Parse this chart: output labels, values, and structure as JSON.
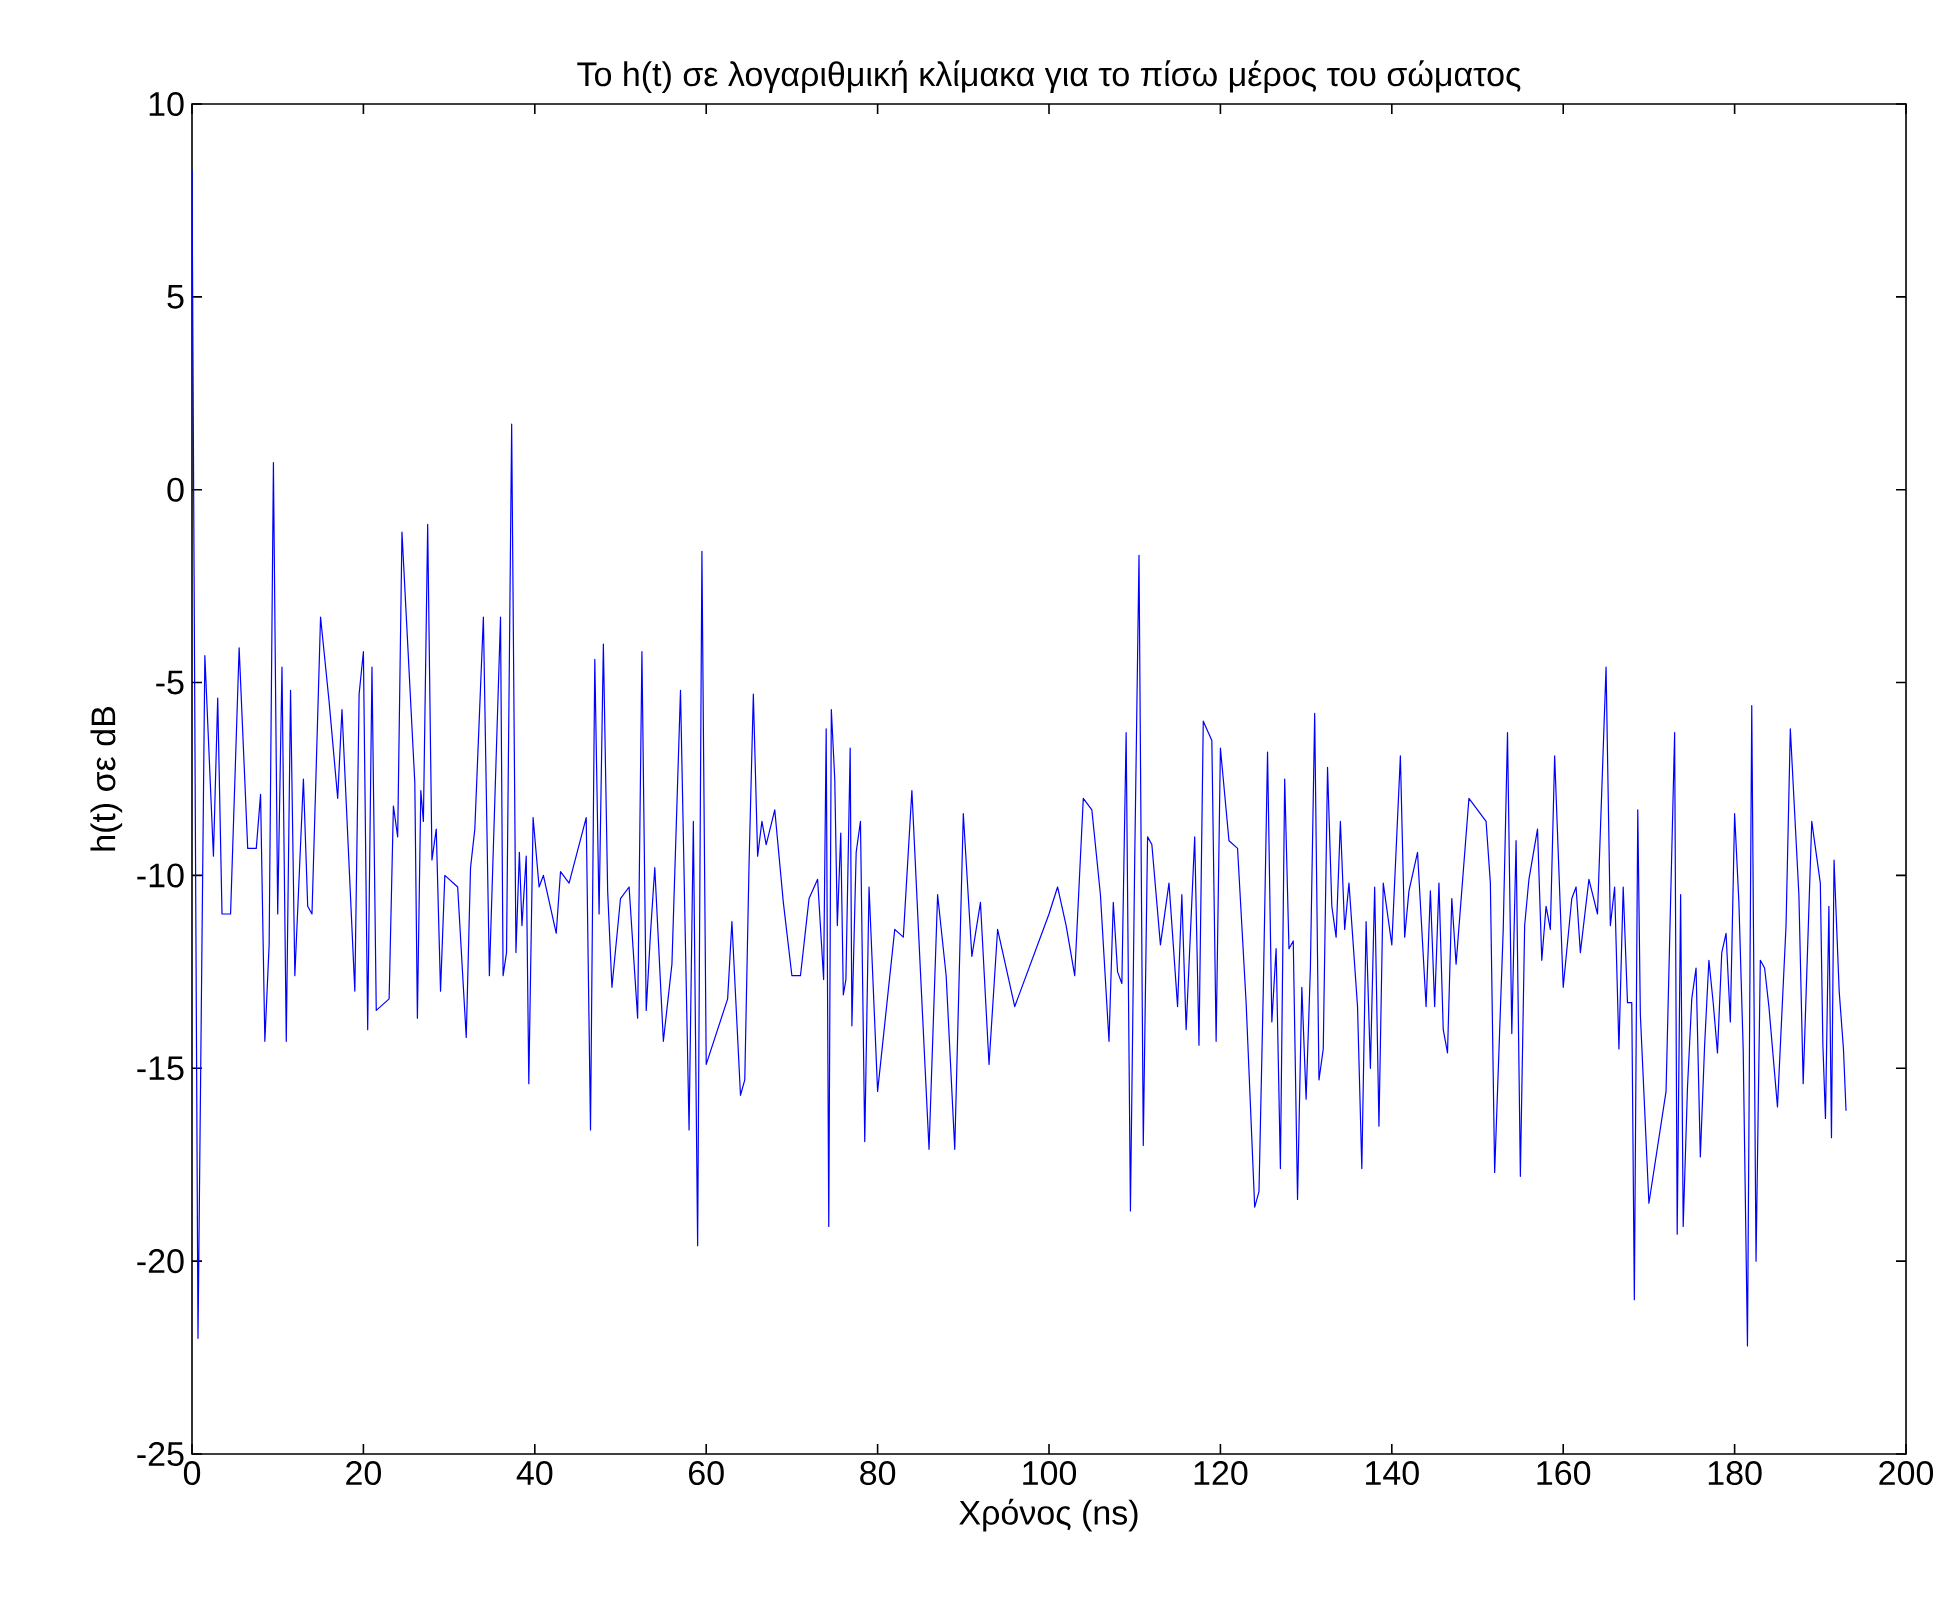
{
  "chart_data": {
    "type": "line",
    "title": "Το h(t) σε λογαριθμική κλίμακα για το πίσω μέρος του σώματος",
    "xlabel": "Χρόνος (ns)",
    "ylabel": "h(t) σε dB",
    "xlim": [
      0,
      200
    ],
    "ylim": [
      -25,
      10
    ],
    "xticks": [
      0,
      20,
      40,
      60,
      80,
      100,
      120,
      140,
      160,
      180,
      200
    ],
    "yticks": [
      -25,
      -20,
      -15,
      -10,
      -5,
      0,
      5,
      10
    ],
    "marker": "none",
    "line_style": "solid",
    "series": [
      {
        "color": "#0000ff",
        "x": [
          0,
          0.7,
          1.5,
          2.5,
          3,
          3.5,
          4.5,
          5.5,
          6.5,
          7.5,
          8,
          8.5,
          9,
          9.5,
          10,
          10.5,
          11,
          11.5,
          12,
          13,
          13.5,
          14,
          15,
          16,
          17,
          17.5,
          19,
          19.5,
          20,
          20.5,
          21,
          21.5,
          23,
          23.5,
          24,
          24.5,
          26,
          26.3,
          26.7,
          27,
          27.5,
          28,
          28.5,
          29,
          29.5,
          31,
          32,
          32.5,
          33,
          34,
          34.7,
          36,
          36.3,
          36.7,
          37.3,
          37.8,
          38.2,
          38.5,
          39,
          39.3,
          39.8,
          40.5,
          41,
          42.5,
          43,
          44,
          46,
          46.5,
          47,
          47.5,
          48,
          48.5,
          49,
          50,
          51,
          52,
          52.5,
          53,
          53.5,
          54,
          55,
          56,
          57,
          58,
          58.5,
          59,
          59.5,
          60,
          62.5,
          63,
          64,
          64.5,
          65,
          65.5,
          66,
          66.5,
          67,
          68,
          69,
          70,
          71,
          72,
          73,
          73.7,
          74,
          74.3,
          74.6,
          75,
          75.3,
          75.7,
          76,
          76.3,
          76.8,
          77,
          77.5,
          78,
          78.5,
          79,
          80,
          82,
          83,
          84,
          85,
          86,
          87,
          88,
          89,
          90,
          91,
          92,
          93,
          94,
          95,
          96,
          98,
          100,
          101,
          102,
          103,
          104,
          105,
          106,
          107,
          107.5,
          108,
          108.5,
          109,
          109.5,
          110,
          110.5,
          111,
          111.5,
          112,
          113,
          114,
          115,
          115.5,
          116,
          117,
          117.5,
          118,
          119,
          119.5,
          120,
          121,
          122,
          123,
          124,
          124.5,
          125,
          125.5,
          126,
          126.5,
          127,
          127.5,
          128,
          128.5,
          129,
          129.5,
          130,
          130.5,
          131,
          131.5,
          132,
          132.5,
          133,
          133.5,
          134,
          134.5,
          135,
          136,
          136.5,
          137,
          137.5,
          138,
          138.5,
          139,
          139.5,
          140,
          141,
          141.5,
          142,
          143,
          144,
          144.5,
          145,
          145.5,
          146,
          146.5,
          147,
          147.5,
          149,
          151,
          151.5,
          152,
          153,
          153.5,
          154,
          154.5,
          155,
          155.5,
          156,
          157,
          157.5,
          158,
          158.5,
          159,
          160,
          161,
          161.5,
          162,
          163,
          164,
          165,
          165.5,
          166,
          166.5,
          167,
          167.5,
          168,
          168.3,
          168.7,
          169,
          170,
          172,
          173,
          173.3,
          173.7,
          174,
          174.5,
          175,
          175.5,
          176,
          176.5,
          177,
          177.5,
          178,
          178.5,
          179,
          179.5,
          180,
          180.5,
          181,
          181.5,
          182,
          182.5,
          183,
          183.5,
          184,
          185,
          186,
          186.5,
          187.5,
          188,
          189,
          190,
          190.3,
          190.6,
          191,
          191.3,
          191.6,
          192.2,
          192.7,
          193
        ],
        "values": [
          8.3,
          -22,
          -4.3,
          -9.5,
          -5.4,
          -11,
          -11,
          -4.1,
          -9.3,
          -9.3,
          -7.9,
          -14.3,
          -11.8,
          0.7,
          -11,
          -4.6,
          -14.3,
          -5.2,
          -12.6,
          -7.5,
          -10.8,
          -11,
          -3.3,
          -5.5,
          -8,
          -5.7,
          -13,
          -5.3,
          -4.2,
          -14,
          -4.6,
          -13.5,
          -13.2,
          -8.2,
          -9,
          -1.1,
          -7.6,
          -13.7,
          -7.8,
          -8.6,
          -0.9,
          -9.6,
          -8.8,
          -13,
          -10,
          -10.3,
          -14.2,
          -9.8,
          -8.8,
          -3.3,
          -12.6,
          -3.3,
          -12.6,
          -12,
          1.7,
          -12,
          -9.4,
          -11.3,
          -9.5,
          -15.4,
          -8.5,
          -10.3,
          -10,
          -11.5,
          -9.9,
          -10.2,
          -8.5,
          -16.6,
          -4.4,
          -11,
          -4,
          -10.4,
          -12.9,
          -10.6,
          -10.3,
          -13.7,
          -4.2,
          -13.5,
          -11.5,
          -9.8,
          -14.3,
          -12.3,
          -5.2,
          -16.6,
          -8.6,
          -19.6,
          -1.6,
          -14.9,
          -13.2,
          -11.2,
          -15.7,
          -15.3,
          -9.7,
          -5.3,
          -9.5,
          -8.6,
          -9.2,
          -8.3,
          -10.7,
          -12.6,
          -12.6,
          -10.6,
          -10.1,
          -12.7,
          -6.2,
          -19.1,
          -5.7,
          -7.5,
          -11.3,
          -8.9,
          -13.1,
          -12.7,
          -6.7,
          -13.9,
          -9.4,
          -8.6,
          -16.9,
          -10.3,
          -15.6,
          -11.4,
          -11.6,
          -7.8,
          -12.5,
          -17.1,
          -10.5,
          -12.6,
          -17.1,
          -8.4,
          -12.1,
          -10.7,
          -14.9,
          -11.4,
          -12.4,
          -13.4,
          -12.2,
          -11,
          -10.3,
          -11.3,
          -12.6,
          -8,
          -8.3,
          -10.5,
          -14.3,
          -10.7,
          -12.5,
          -12.8,
          -6.3,
          -18.7,
          -9.6,
          -1.7,
          -17,
          -9,
          -9.2,
          -11.8,
          -10.2,
          -13.4,
          -10.5,
          -14,
          -9,
          -14.4,
          -6,
          -6.5,
          -14.3,
          -6.7,
          -9.1,
          -9.3,
          -13.3,
          -18.6,
          -18.2,
          -13,
          -6.8,
          -13.8,
          -11.9,
          -17.6,
          -7.5,
          -11.9,
          -11.7,
          -18.4,
          -12.9,
          -15.8,
          -12.4,
          -5.8,
          -15.3,
          -14.5,
          -7.2,
          -10.8,
          -11.6,
          -8.6,
          -11.4,
          -10.2,
          -13.4,
          -17.6,
          -11.2,
          -15,
          -10.3,
          -16.5,
          -10.2,
          -11,
          -11.8,
          -6.9,
          -11.6,
          -10.4,
          -9.4,
          -13.4,
          -10.4,
          -13.4,
          -10.2,
          -14,
          -14.6,
          -10.6,
          -12.3,
          -8,
          -8.6,
          -10.2,
          -17.7,
          -11.4,
          -6.3,
          -14.1,
          -9.1,
          -17.8,
          -11.3,
          -10.1,
          -8.8,
          -12.2,
          -10.8,
          -11.4,
          -6.9,
          -12.9,
          -10.6,
          -10.3,
          -12,
          -10.1,
          -11,
          -4.6,
          -11.3,
          -10.3,
          -14.5,
          -10.3,
          -13.3,
          -13.3,
          -21,
          -8.3,
          -13.6,
          -18.5,
          -15.6,
          -6.3,
          -19.3,
          -10.5,
          -19.1,
          -15.5,
          -13.2,
          -12.4,
          -17.3,
          -14.4,
          -12.2,
          -13.3,
          -14.6,
          -12,
          -11.5,
          -13.8,
          -8.4,
          -10.7,
          -14.5,
          -22.2,
          -5.6,
          -20,
          -12.2,
          -12.4,
          -13.4,
          -16,
          -11.3,
          -6.2,
          -10.5,
          -15.4,
          -8.6,
          -10.2,
          -14.4,
          -16.3,
          -10.8,
          -16.8,
          -9.6,
          -13,
          -14.5,
          -16.1
        ]
      }
    ]
  }
}
